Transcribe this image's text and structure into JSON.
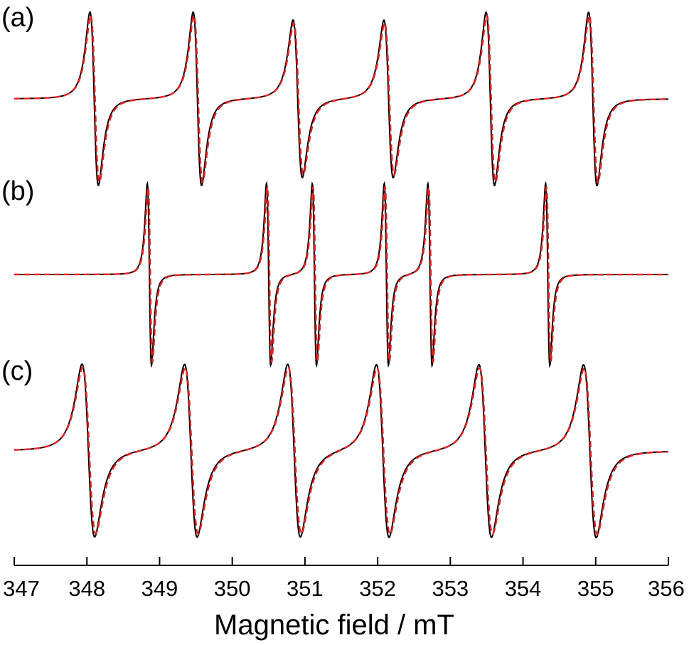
{
  "chart_data": {
    "type": "line",
    "xlabel": "Magnetic field / mT",
    "xlim": [
      347,
      356
    ],
    "xticks": [
      347,
      348,
      349,
      350,
      351,
      352,
      353,
      354,
      355,
      356
    ],
    "colors": {
      "experimental": "#000000",
      "simulated": "#e8201f"
    },
    "series_style": {
      "experimental": "solid",
      "simulated": "dashed"
    },
    "panels": [
      {
        "label": "(a)",
        "lines": [
          {
            "center": 348.1,
            "width": 0.1
          },
          {
            "center": 349.52,
            "width": 0.1
          },
          {
            "center": 350.9,
            "width": 0.11
          },
          {
            "center": 352.15,
            "width": 0.11
          },
          {
            "center": 353.55,
            "width": 0.1
          },
          {
            "center": 354.96,
            "width": 0.1
          }
        ]
      },
      {
        "label": "(b)",
        "lines": [
          {
            "center": 348.86,
            "width": 0.05
          },
          {
            "center": 350.5,
            "width": 0.05
          },
          {
            "center": 351.13,
            "width": 0.05
          },
          {
            "center": 352.12,
            "width": 0.05
          },
          {
            "center": 352.72,
            "width": 0.05
          },
          {
            "center": 354.34,
            "width": 0.05
          }
        ]
      },
      {
        "label": "(c)",
        "lines": [
          {
            "center": 348.02,
            "width": 0.15
          },
          {
            "center": 349.43,
            "width": 0.15
          },
          {
            "center": 350.85,
            "width": 0.15
          },
          {
            "center": 352.07,
            "width": 0.15
          },
          {
            "center": 353.48,
            "width": 0.15
          },
          {
            "center": 354.92,
            "width": 0.15
          }
        ]
      }
    ]
  }
}
